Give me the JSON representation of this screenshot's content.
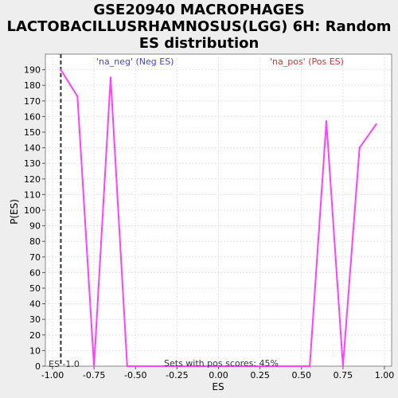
{
  "chart_data": {
    "type": "line",
    "title": "GSE20940 MACROPHAGES LACTOBACILLUSRHAMNOSUS(LGG) 6H: Random ES distribution",
    "title_lines": [
      "GSE20940 MACROPHAGES",
      "LACTOBACILLUSRHAMNOSUS(LGG) 6H: Random",
      "ES distribution"
    ],
    "xlabel": "ES",
    "ylabel": "P(ES)",
    "xlim": [
      -1.0,
      1.0
    ],
    "ylim": [
      0,
      200
    ],
    "x_ticks": [
      -1.0,
      -0.75,
      -0.5,
      -0.25,
      0.0,
      0.25,
      0.5,
      0.75,
      1.0
    ],
    "x_tick_labels": [
      "-1.00",
      "-0.75",
      "-0.50",
      "-0.25",
      "0.00",
      "0.25",
      "0.50",
      "0.75",
      "1.00"
    ],
    "y_ticks": [
      0,
      10,
      20,
      30,
      40,
      50,
      60,
      70,
      80,
      90,
      100,
      110,
      120,
      130,
      140,
      150,
      160,
      170,
      180,
      190
    ],
    "grid": true,
    "series": [
      {
        "color": "#ff40ff",
        "x": [
          -0.95,
          -0.85,
          -0.75,
          -0.65,
          -0.55,
          0.45,
          0.55,
          0.65,
          0.75,
          0.85,
          0.95
        ],
        "y": [
          190,
          173,
          0,
          185,
          0,
          0,
          0,
          157,
          0,
          140,
          155
        ]
      }
    ],
    "marker_line": {
      "x": -0.95,
      "style": "dashed",
      "color": "#333333"
    },
    "annotations": {
      "neg_label": "'na_neg' (Neg ES)",
      "neg_color": "#4444cc",
      "pos_label": "'na_pos' (Pos ES)",
      "pos_color": "#cc3333",
      "es_label": "ES -1.0",
      "bottom_label": "Sets with pos scores: 45%"
    }
  }
}
